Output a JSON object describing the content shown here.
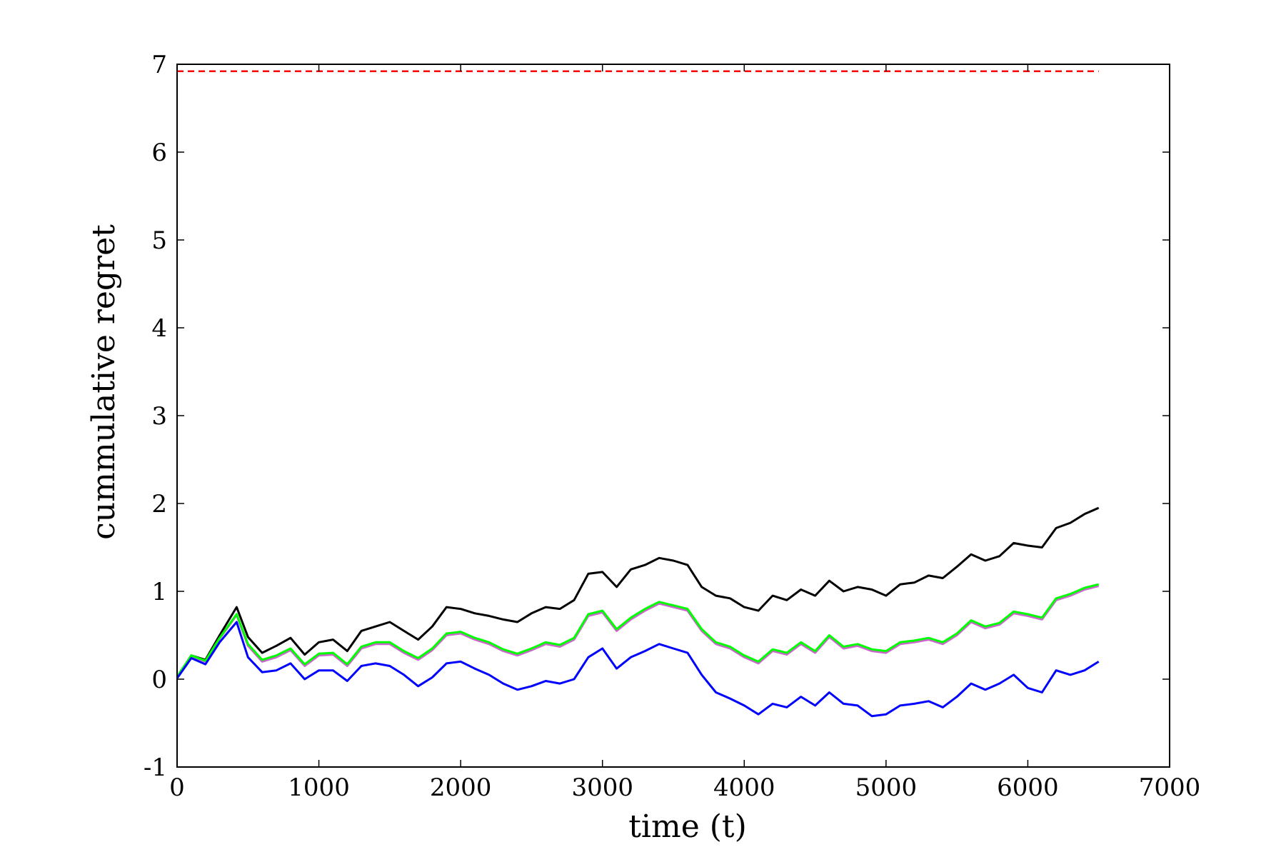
{
  "chart_data": {
    "type": "line",
    "title": "",
    "xlabel": "time (t)",
    "ylabel": "cummulative regret",
    "xlim": [
      0,
      7000
    ],
    "ylim": [
      -1,
      7
    ],
    "xticks": [
      0,
      1000,
      2000,
      3000,
      4000,
      5000,
      6000,
      7000
    ],
    "yticks": [
      -1,
      0,
      1,
      2,
      3,
      4,
      5,
      6,
      7
    ],
    "grid": false,
    "legend": "none",
    "series": [
      {
        "color": "#ff0000",
        "style": "dashed",
        "x": [
          0,
          6500
        ],
        "y": [
          6.92,
          6.92
        ]
      },
      {
        "color": "#000000",
        "style": "solid",
        "x": [
          0,
          100,
          200,
          300,
          420,
          500,
          600,
          700,
          800,
          900,
          1000,
          1100,
          1200,
          1300,
          1400,
          1500,
          1600,
          1700,
          1800,
          1900,
          2000,
          2100,
          2200,
          2300,
          2400,
          2500,
          2600,
          2700,
          2800,
          2900,
          3000,
          3100,
          3200,
          3300,
          3400,
          3500,
          3600,
          3700,
          3800,
          3900,
          4000,
          4100,
          4200,
          4300,
          4400,
          4500,
          4600,
          4700,
          4800,
          4900,
          5000,
          5100,
          5200,
          5300,
          5400,
          5500,
          5600,
          5700,
          5800,
          5900,
          6000,
          6100,
          6200,
          6300,
          6400,
          6500
        ],
        "y": [
          0.02,
          0.27,
          0.22,
          0.5,
          0.82,
          0.48,
          0.3,
          0.38,
          0.47,
          0.28,
          0.42,
          0.45,
          0.32,
          0.55,
          0.6,
          0.65,
          0.55,
          0.45,
          0.6,
          0.82,
          0.8,
          0.75,
          0.72,
          0.68,
          0.65,
          0.75,
          0.82,
          0.8,
          0.9,
          1.2,
          1.22,
          1.05,
          1.25,
          1.3,
          1.38,
          1.35,
          1.3,
          1.05,
          0.95,
          0.92,
          0.82,
          0.78,
          0.95,
          0.9,
          1.02,
          0.95,
          1.12,
          1.0,
          1.05,
          1.02,
          0.95,
          1.08,
          1.1,
          1.18,
          1.15,
          1.28,
          1.42,
          1.35,
          1.4,
          1.55,
          1.52,
          1.5,
          1.72,
          1.78,
          1.88,
          1.95
        ]
      },
      {
        "color": "#cc66cc",
        "style": "solid",
        "x": [
          0,
          100,
          200,
          300,
          420,
          500,
          600,
          700,
          800,
          900,
          1000,
          1100,
          1200,
          1300,
          1400,
          1500,
          1600,
          1700,
          1800,
          1900,
          2000,
          2100,
          2200,
          2300,
          2400,
          2500,
          2600,
          2700,
          2800,
          2900,
          3000,
          3100,
          3200,
          3300,
          3400,
          3500,
          3600,
          3700,
          3800,
          3900,
          4000,
          4100,
          4200,
          4300,
          4400,
          4500,
          4600,
          4700,
          4800,
          4900,
          5000,
          5100,
          5200,
          5300,
          5400,
          5500,
          5600,
          5700,
          5800,
          5900,
          6000,
          6100,
          6200,
          6300,
          6400,
          6500
        ],
        "y": [
          0.02,
          0.26,
          0.2,
          0.46,
          0.73,
          0.38,
          0.2,
          0.25,
          0.33,
          0.15,
          0.27,
          0.28,
          0.15,
          0.35,
          0.4,
          0.4,
          0.3,
          0.22,
          0.33,
          0.5,
          0.52,
          0.45,
          0.4,
          0.32,
          0.27,
          0.33,
          0.4,
          0.37,
          0.45,
          0.72,
          0.76,
          0.55,
          0.68,
          0.78,
          0.86,
          0.82,
          0.78,
          0.55,
          0.4,
          0.35,
          0.25,
          0.18,
          0.32,
          0.28,
          0.4,
          0.3,
          0.48,
          0.35,
          0.38,
          0.32,
          0.3,
          0.4,
          0.42,
          0.45,
          0.4,
          0.5,
          0.65,
          0.58,
          0.62,
          0.75,
          0.72,
          0.68,
          0.9,
          0.95,
          1.02,
          1.06
        ]
      },
      {
        "color": "#00ff00",
        "style": "solid",
        "x": [
          0,
          100,
          200,
          300,
          420,
          500,
          600,
          700,
          800,
          900,
          1000,
          1100,
          1200,
          1300,
          1400,
          1500,
          1600,
          1700,
          1800,
          1900,
          2000,
          2100,
          2200,
          2300,
          2400,
          2500,
          2600,
          2700,
          2800,
          2900,
          3000,
          3100,
          3200,
          3300,
          3400,
          3500,
          3600,
          3700,
          3800,
          3900,
          4000,
          4100,
          4200,
          4300,
          4400,
          4500,
          4600,
          4700,
          4800,
          4900,
          5000,
          5100,
          5200,
          5300,
          5400,
          5500,
          5600,
          5700,
          5800,
          5900,
          6000,
          6100,
          6200,
          6300,
          6400,
          6500
        ],
        "y": [
          0.03,
          0.27,
          0.21,
          0.47,
          0.74,
          0.4,
          0.22,
          0.27,
          0.35,
          0.17,
          0.29,
          0.3,
          0.17,
          0.37,
          0.42,
          0.42,
          0.32,
          0.24,
          0.35,
          0.52,
          0.54,
          0.47,
          0.42,
          0.34,
          0.29,
          0.35,
          0.42,
          0.39,
          0.47,
          0.74,
          0.78,
          0.57,
          0.7,
          0.8,
          0.88,
          0.84,
          0.8,
          0.57,
          0.42,
          0.37,
          0.27,
          0.2,
          0.34,
          0.3,
          0.42,
          0.32,
          0.5,
          0.37,
          0.4,
          0.34,
          0.32,
          0.42,
          0.44,
          0.47,
          0.42,
          0.52,
          0.67,
          0.6,
          0.64,
          0.77,
          0.74,
          0.7,
          0.92,
          0.97,
          1.04,
          1.08
        ]
      },
      {
        "color": "#0000ff",
        "style": "solid",
        "x": [
          0,
          100,
          200,
          300,
          420,
          500,
          600,
          700,
          800,
          900,
          1000,
          1100,
          1200,
          1300,
          1400,
          1500,
          1600,
          1700,
          1800,
          1900,
          2000,
          2100,
          2200,
          2300,
          2400,
          2500,
          2600,
          2700,
          2800,
          2900,
          3000,
          3100,
          3200,
          3300,
          3400,
          3500,
          3600,
          3700,
          3800,
          3900,
          4000,
          4100,
          4200,
          4300,
          4400,
          4500,
          4600,
          4700,
          4800,
          4900,
          5000,
          5100,
          5200,
          5300,
          5400,
          5500,
          5600,
          5700,
          5800,
          5900,
          6000,
          6100,
          6200,
          6300,
          6400,
          6500
        ],
        "y": [
          0.01,
          0.24,
          0.17,
          0.42,
          0.65,
          0.25,
          0.08,
          0.1,
          0.18,
          0.0,
          0.1,
          0.1,
          -0.02,
          0.15,
          0.18,
          0.15,
          0.05,
          -0.08,
          0.02,
          0.18,
          0.2,
          0.12,
          0.05,
          -0.05,
          -0.12,
          -0.08,
          -0.02,
          -0.05,
          0.0,
          0.25,
          0.35,
          0.12,
          0.25,
          0.32,
          0.4,
          0.35,
          0.3,
          0.05,
          -0.15,
          -0.22,
          -0.3,
          -0.4,
          -0.28,
          -0.32,
          -0.2,
          -0.3,
          -0.15,
          -0.28,
          -0.3,
          -0.42,
          -0.4,
          -0.3,
          -0.28,
          -0.25,
          -0.32,
          -0.2,
          -0.05,
          -0.12,
          -0.05,
          0.05,
          -0.1,
          -0.15,
          0.1,
          0.05,
          0.1,
          0.2
        ]
      }
    ]
  }
}
